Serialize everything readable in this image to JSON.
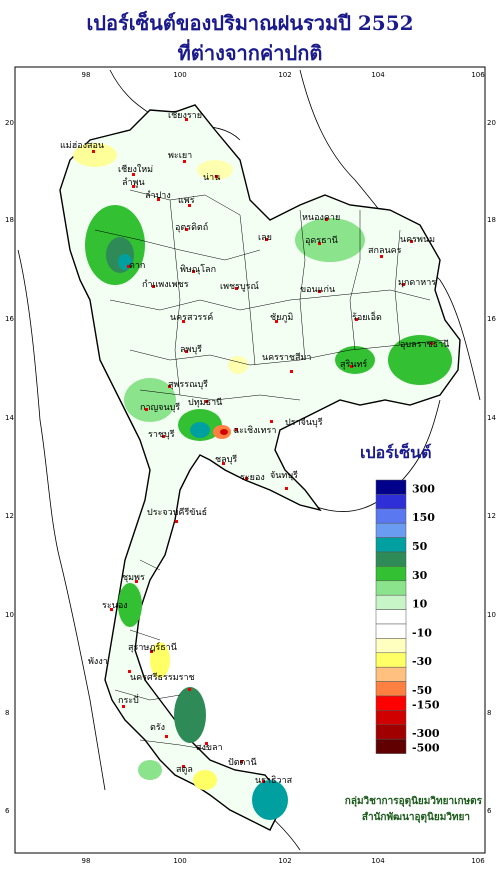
{
  "title": {
    "line1": "เปอร์เซ็นต์ของปริมาณฝนรวมปี  2552",
    "line2": "ที่ต่างจากค่าปกติ"
  },
  "axes": {
    "x_ticks": [
      "98",
      "100",
      "102",
      "104",
      "106"
    ],
    "y_ticks": [
      "20",
      "18",
      "16",
      "14",
      "12",
      "10",
      "8",
      "6"
    ]
  },
  "legend": {
    "title": "เปอร์เซ็นต์",
    "bins": [
      {
        "color": "#00008b",
        "label": "300"
      },
      {
        "color": "#2f2fd8",
        "label": ""
      },
      {
        "color": "#5a78f0",
        "label": "150"
      },
      {
        "color": "#6a9cf2",
        "label": ""
      },
      {
        "color": "#00a0a0",
        "label": "50"
      },
      {
        "color": "#2e8b57",
        "label": ""
      },
      {
        "color": "#33c033",
        "label": "30"
      },
      {
        "color": "#8be38b",
        "label": ""
      },
      {
        "color": "#c8f5c8",
        "label": "10"
      },
      {
        "color": "#ffffff",
        "label": ""
      },
      {
        "color": "#ffffff",
        "label": "-10"
      },
      {
        "color": "#ffffc0",
        "label": ""
      },
      {
        "color": "#ffff66",
        "label": "-30"
      },
      {
        "color": "#ffc080",
        "label": ""
      },
      {
        "color": "#ff8040",
        "label": "-50"
      },
      {
        "color": "#ff0000",
        "label": "-150"
      },
      {
        "color": "#d00000",
        "label": ""
      },
      {
        "color": "#a00000",
        "label": "-300"
      },
      {
        "color": "#600000",
        "label": "-500"
      }
    ]
  },
  "credit": {
    "line1": "กลุ่มวิชาการอุตุนิยมวิทยาเกษตร",
    "line2": "สำนักพัฒนาอุตุนิยมวิทยา"
  },
  "places": [
    {
      "name": "เชียงราย"
    },
    {
      "name": "แม่ฮ่องสอน"
    },
    {
      "name": "พะเยา"
    },
    {
      "name": "เชียงใหม่"
    },
    {
      "name": "ลำพูน"
    },
    {
      "name": "น่าน"
    },
    {
      "name": "ลำปาง"
    },
    {
      "name": "แพร่"
    },
    {
      "name": "หนองคาย"
    },
    {
      "name": "อุดรธานี"
    },
    {
      "name": "สกลนคร"
    },
    {
      "name": "นครพนม"
    },
    {
      "name": "มุกดาหาร"
    },
    {
      "name": "อุตรดิตถ์"
    },
    {
      "name": "ตาก"
    },
    {
      "name": "พิษณุโลก"
    },
    {
      "name": "เลย"
    },
    {
      "name": "ขอนแก่น"
    },
    {
      "name": "กำแพงเพชร"
    },
    {
      "name": "เพชรบูรณ์"
    },
    {
      "name": "นครสวรรค์"
    },
    {
      "name": "ชัยภูมิ"
    },
    {
      "name": "ร้อยเอ็ด"
    },
    {
      "name": "อุบลราชธานี"
    },
    {
      "name": "ลพบุรี"
    },
    {
      "name": "นครราชสีมา"
    },
    {
      "name": "สุรินทร์"
    },
    {
      "name": "สุพรรณบุรี"
    },
    {
      "name": "กาญจนบุรี"
    },
    {
      "name": "ปทุมธานี"
    },
    {
      "name": "ราชบุรี"
    },
    {
      "name": "ฉะเชิงเทรา"
    },
    {
      "name": "ปราจีนบุรี"
    },
    {
      "name": "ชลบุรี"
    },
    {
      "name": "ระยอง"
    },
    {
      "name": "จันทบุรี"
    },
    {
      "name": "ประจวบคีรีขันธ์"
    },
    {
      "name": "ชุมพร"
    },
    {
      "name": "ระนอง"
    },
    {
      "name": "สุราษฎร์ธานี"
    },
    {
      "name": "พังงา"
    },
    {
      "name": "นครศรีธรรมราช"
    },
    {
      "name": "กระบี่"
    },
    {
      "name": "ตรัง"
    },
    {
      "name": "สตูล"
    },
    {
      "name": "สงขลา"
    },
    {
      "name": "ปัตตานี"
    },
    {
      "name": "นราธิวาส"
    }
  ]
}
